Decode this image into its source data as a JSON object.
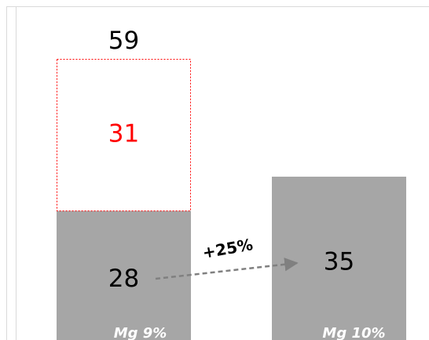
{
  "chart_data": {
    "type": "bar",
    "series": [
      {
        "color": "#a6a6a6",
        "values": [
          28,
          35
        ]
      },
      {
        "color": "#ff0000",
        "style": "dashed-outline",
        "values": [
          31,
          null
        ]
      }
    ],
    "totals": [
      59,
      null
    ],
    "growth_label": "+25%",
    "margin_labels": [
      "Mg 9%",
      "Mg 10%"
    ],
    "ylim": [
      0,
      70
    ]
  }
}
